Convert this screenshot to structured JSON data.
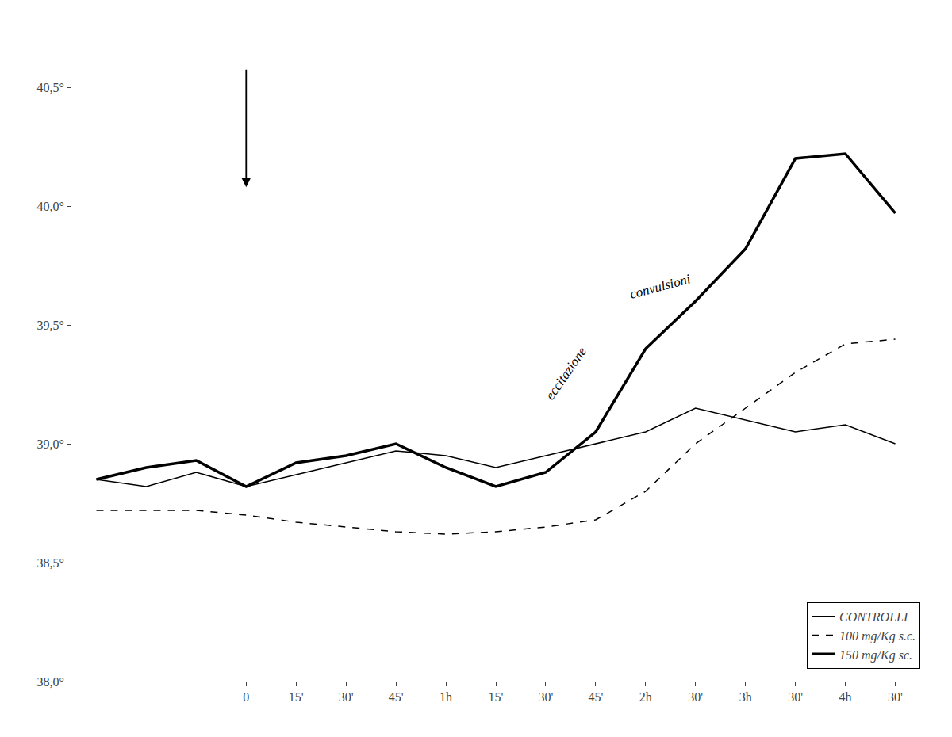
{
  "chart_data": {
    "type": "line",
    "categories": [
      null,
      null,
      null,
      "0",
      "15'",
      "30'",
      "45'",
      "1h",
      "15'",
      "30'",
      "45'",
      "2h",
      "30'",
      "3h",
      "30'",
      "4h",
      "30'"
    ],
    "series": [
      {
        "name": "CONTROLLI",
        "color": "black",
        "line_style": "solid",
        "values": [
          38.85,
          38.82,
          38.88,
          38.82,
          38.87,
          38.92,
          38.97,
          38.95,
          38.9,
          38.95,
          39.0,
          39.05,
          39.15,
          39.1,
          39.05,
          39.08,
          39.0
        ]
      },
      {
        "name": "100 mg/Kg s.c.",
        "color": "black",
        "line_style": "dashed",
        "values": [
          38.72,
          38.72,
          38.72,
          38.7,
          38.67,
          38.65,
          38.63,
          38.62,
          38.63,
          38.65,
          38.68,
          38.8,
          39.0,
          39.15,
          39.3,
          39.42,
          39.44
        ]
      },
      {
        "name": "150 mg/Kg sc.",
        "color": "black",
        "line_style": "solid",
        "values": [
          38.85,
          38.9,
          38.93,
          38.82,
          38.92,
          38.95,
          39.0,
          38.9,
          38.82,
          38.88,
          39.05,
          39.4,
          39.6,
          39.82,
          40.2,
          40.22,
          39.97
        ]
      }
    ],
    "ylim": [
      38.0,
      40.7
    ],
    "yticks": [
      {
        "value": 38.0,
        "label": "38,0°"
      },
      {
        "value": 38.5,
        "label": "38,5°"
      },
      {
        "value": 39.0,
        "label": "39,0°"
      },
      {
        "value": 39.5,
        "label": "39,5°"
      },
      {
        "value": 40.0,
        "label": "40,0°"
      },
      {
        "value": 40.5,
        "label": "40,5°"
      }
    ],
    "grid": false,
    "legend": "lower right",
    "annotations": [
      "eccitazione",
      "convulsioni"
    ]
  }
}
